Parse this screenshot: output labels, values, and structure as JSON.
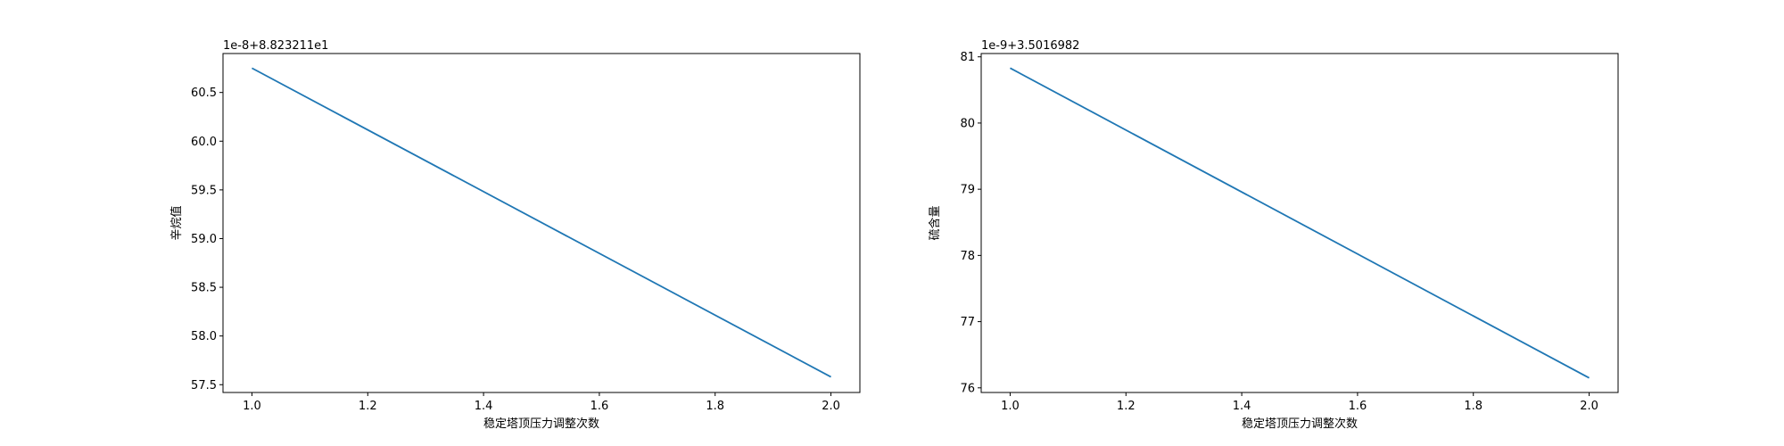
{
  "chart_data": [
    {
      "type": "line",
      "xlabel": "稳定塔顶压力调整次数",
      "ylabel": "辛烷值",
      "y_offset_label": "1e-8+8.823211e1",
      "xlim": [
        0.95,
        2.05
      ],
      "ylim": [
        57.42,
        60.9
      ],
      "xticks": [
        1.0,
        1.2,
        1.4,
        1.6,
        1.8,
        2.0
      ],
      "xtick_labels": [
        "1.0",
        "1.2",
        "1.4",
        "1.6",
        "1.8",
        "2.0"
      ],
      "yticks": [
        57.5,
        58.0,
        58.5,
        59.0,
        59.5,
        60.0,
        60.5
      ],
      "ytick_labels": [
        "57.5",
        "58.0",
        "58.5",
        "59.0",
        "59.5",
        "60.0",
        "60.5"
      ],
      "grid": false,
      "series": [
        {
          "x": [
            1.0,
            2.0
          ],
          "y": [
            60.75,
            57.58
          ],
          "color": "#1f77b4"
        }
      ]
    },
    {
      "type": "line",
      "xlabel": "稳定塔顶压力调整次数",
      "ylabel": "硫含量",
      "y_offset_label": "1e-9+3.5016982",
      "xlim": [
        0.95,
        2.05
      ],
      "ylim": [
        75.93,
        81.05
      ],
      "xticks": [
        1.0,
        1.2,
        1.4,
        1.6,
        1.8,
        2.0
      ],
      "xtick_labels": [
        "1.0",
        "1.2",
        "1.4",
        "1.6",
        "1.8",
        "2.0"
      ],
      "yticks": [
        76,
        77,
        78,
        79,
        80,
        81
      ],
      "ytick_labels": [
        "76",
        "77",
        "78",
        "79",
        "80",
        "81"
      ],
      "grid": false,
      "series": [
        {
          "x": [
            1.0,
            2.0
          ],
          "y": [
            80.83,
            76.15
          ],
          "color": "#1f77b4"
        }
      ]
    }
  ]
}
